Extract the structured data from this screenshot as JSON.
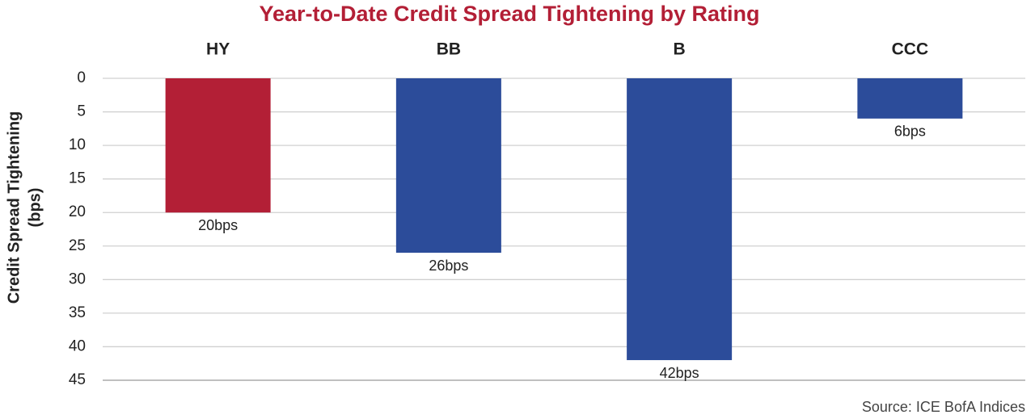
{
  "chart_data": {
    "type": "bar",
    "title": "Year-to-Date Credit Spread Tightening by Rating",
    "ylabel": [
      "Credit Spread Tightening",
      "(bps)"
    ],
    "categories": [
      "HY",
      "BB",
      "B",
      "CCC"
    ],
    "values": [
      20,
      26,
      42,
      6
    ],
    "value_labels": [
      "20bps",
      "26bps",
      "42bps",
      "6bps"
    ],
    "colors": [
      "#b31f36",
      "#2c4c9a",
      "#2c4c9a",
      "#2c4c9a"
    ],
    "ylim": [
      0,
      45
    ],
    "yticks": [
      0,
      5,
      10,
      15,
      20,
      25,
      30,
      35,
      40,
      45
    ],
    "y_inverted": true,
    "grid": true,
    "category_axis": "top",
    "source": "Source: ICE BofA Indices"
  }
}
